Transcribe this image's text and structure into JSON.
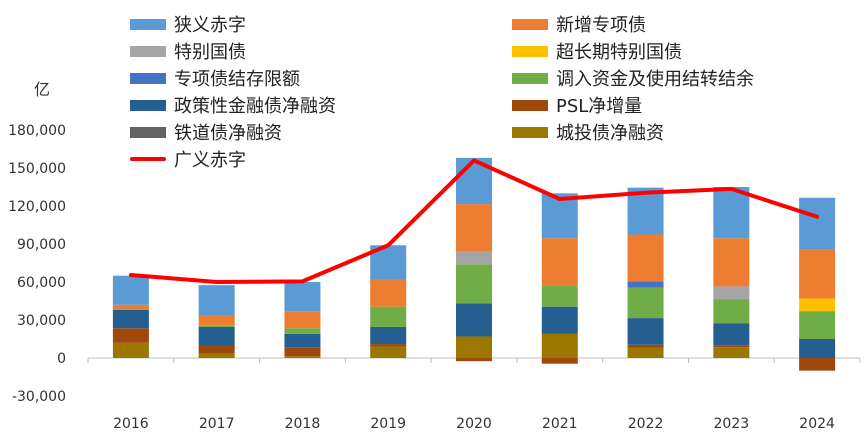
{
  "chart_data": {
    "type": "bar",
    "stacked": true,
    "unit_label": "亿",
    "categories": [
      "2016",
      "2017",
      "2018",
      "2019",
      "2020",
      "2021",
      "2022",
      "2023",
      "2024"
    ],
    "ylim": [
      -30000,
      180000
    ],
    "yticks": [
      -30000,
      0,
      30000,
      60000,
      90000,
      120000,
      150000,
      180000
    ],
    "ytick_labels": [
      "-30,000",
      "0",
      "30,000",
      "60,000",
      "90,000",
      "120,000",
      "150,000",
      "180,000"
    ],
    "series": [
      {
        "name": "城投债净融资",
        "color": "#9c7700",
        "values": [
          12000,
          3500,
          1500,
          9000,
          17000,
          19000,
          8000,
          8500,
          0
        ]
      },
      {
        "name": "铁道债净融资",
        "color": "#636363",
        "values": [
          0,
          0,
          0,
          0,
          0,
          0,
          0,
          0,
          0
        ]
      },
      {
        "name": "PSL净增量",
        "color": "#9e480e",
        "values": [
          11500,
          6000,
          7000,
          2000,
          -2500,
          -4500,
          2500,
          1500,
          -10000
        ]
      },
      {
        "name": "政策性金融债净融资",
        "color": "#255e91",
        "values": [
          14500,
          15000,
          10500,
          13500,
          26000,
          21500,
          21000,
          17500,
          15000
        ]
      },
      {
        "name": "调入资金及使用结转结余",
        "color": "#70ad47",
        "values": [
          0,
          1000,
          4500,
          16000,
          31000,
          17000,
          24000,
          19000,
          22000
        ]
      },
      {
        "name": "专项债结存限额",
        "color": "#4472c4",
        "values": [
          0,
          0,
          0,
          0,
          0,
          0,
          5000,
          0,
          0
        ]
      },
      {
        "name": "超长期特别国债",
        "color": "#ffc000",
        "values": [
          0,
          0,
          0,
          0,
          0,
          0,
          0,
          0,
          10000
        ]
      },
      {
        "name": "特别国债",
        "color": "#a5a5a5",
        "values": [
          0,
          0,
          0,
          0,
          10000,
          0,
          0,
          10000,
          0
        ]
      },
      {
        "name": "新增专项债",
        "color": "#ed7d31",
        "values": [
          4000,
          8000,
          13500,
          21500,
          37500,
          37000,
          37000,
          38000,
          39000
        ]
      },
      {
        "name": "狭义赤字",
        "color": "#5b9bd5",
        "values": [
          23000,
          24000,
          23000,
          27000,
          36500,
          35500,
          37000,
          40500,
          40500
        ]
      }
    ],
    "line": {
      "name": "广义赤字",
      "color": "#ff0000",
      "values": [
        65500,
        60000,
        60500,
        89000,
        156000,
        125500,
        130500,
        133500,
        111500
      ]
    }
  },
  "legend": [
    {
      "name": "狭义赤字",
      "color": "#5b9bd5",
      "kind": "bar"
    },
    {
      "name": "新增专项债",
      "color": "#ed7d31",
      "kind": "bar"
    },
    {
      "name": "特别国债",
      "color": "#a5a5a5",
      "kind": "bar"
    },
    {
      "name": "超长期特别国债",
      "color": "#ffc000",
      "kind": "bar"
    },
    {
      "name": "专项债结存限额",
      "color": "#4472c4",
      "kind": "bar"
    },
    {
      "name": "调入资金及使用结转结余",
      "color": "#70ad47",
      "kind": "bar"
    },
    {
      "name": "政策性金融债净融资",
      "color": "#255e91",
      "kind": "bar"
    },
    {
      "name": "PSL净增量",
      "color": "#9e480e",
      "kind": "bar"
    },
    {
      "name": "铁道债净融资",
      "color": "#636363",
      "kind": "bar"
    },
    {
      "name": "城投债净融资",
      "color": "#9c7700",
      "kind": "bar"
    },
    {
      "name": "广义赤字",
      "color": "#ff0000",
      "kind": "line"
    }
  ]
}
